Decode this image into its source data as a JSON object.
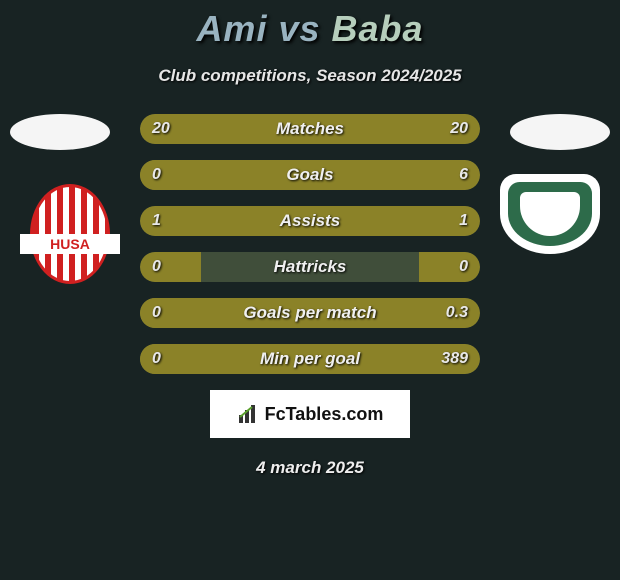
{
  "title": {
    "player1": "Ami",
    "vs": "vs",
    "player2": "Baba"
  },
  "subtitle": "Club competitions, Season 2024/2025",
  "bars": [
    {
      "label": "Matches",
      "left": "20",
      "right": "20",
      "left_pct": 50,
      "right_pct": 50
    },
    {
      "label": "Goals",
      "left": "0",
      "right": "6",
      "left_pct": 18,
      "right_pct": 100
    },
    {
      "label": "Assists",
      "left": "1",
      "right": "1",
      "left_pct": 50,
      "right_pct": 50
    },
    {
      "label": "Hattricks",
      "left": "0",
      "right": "0",
      "left_pct": 18,
      "right_pct": 18
    },
    {
      "label": "Goals per match",
      "left": "0",
      "right": "0.3",
      "left_pct": 18,
      "right_pct": 100
    },
    {
      "label": "Min per goal",
      "left": "0",
      "right": "389",
      "left_pct": 18,
      "right_pct": 100
    }
  ],
  "colors": {
    "background": "#182323",
    "bar_track": "#404e3a",
    "bar_fill": "#8b8228",
    "title_p1": "#99b3c0",
    "title_p2": "#b6cebc"
  },
  "footer": {
    "brand": "FcTables.com",
    "date": "4 march 2025"
  }
}
